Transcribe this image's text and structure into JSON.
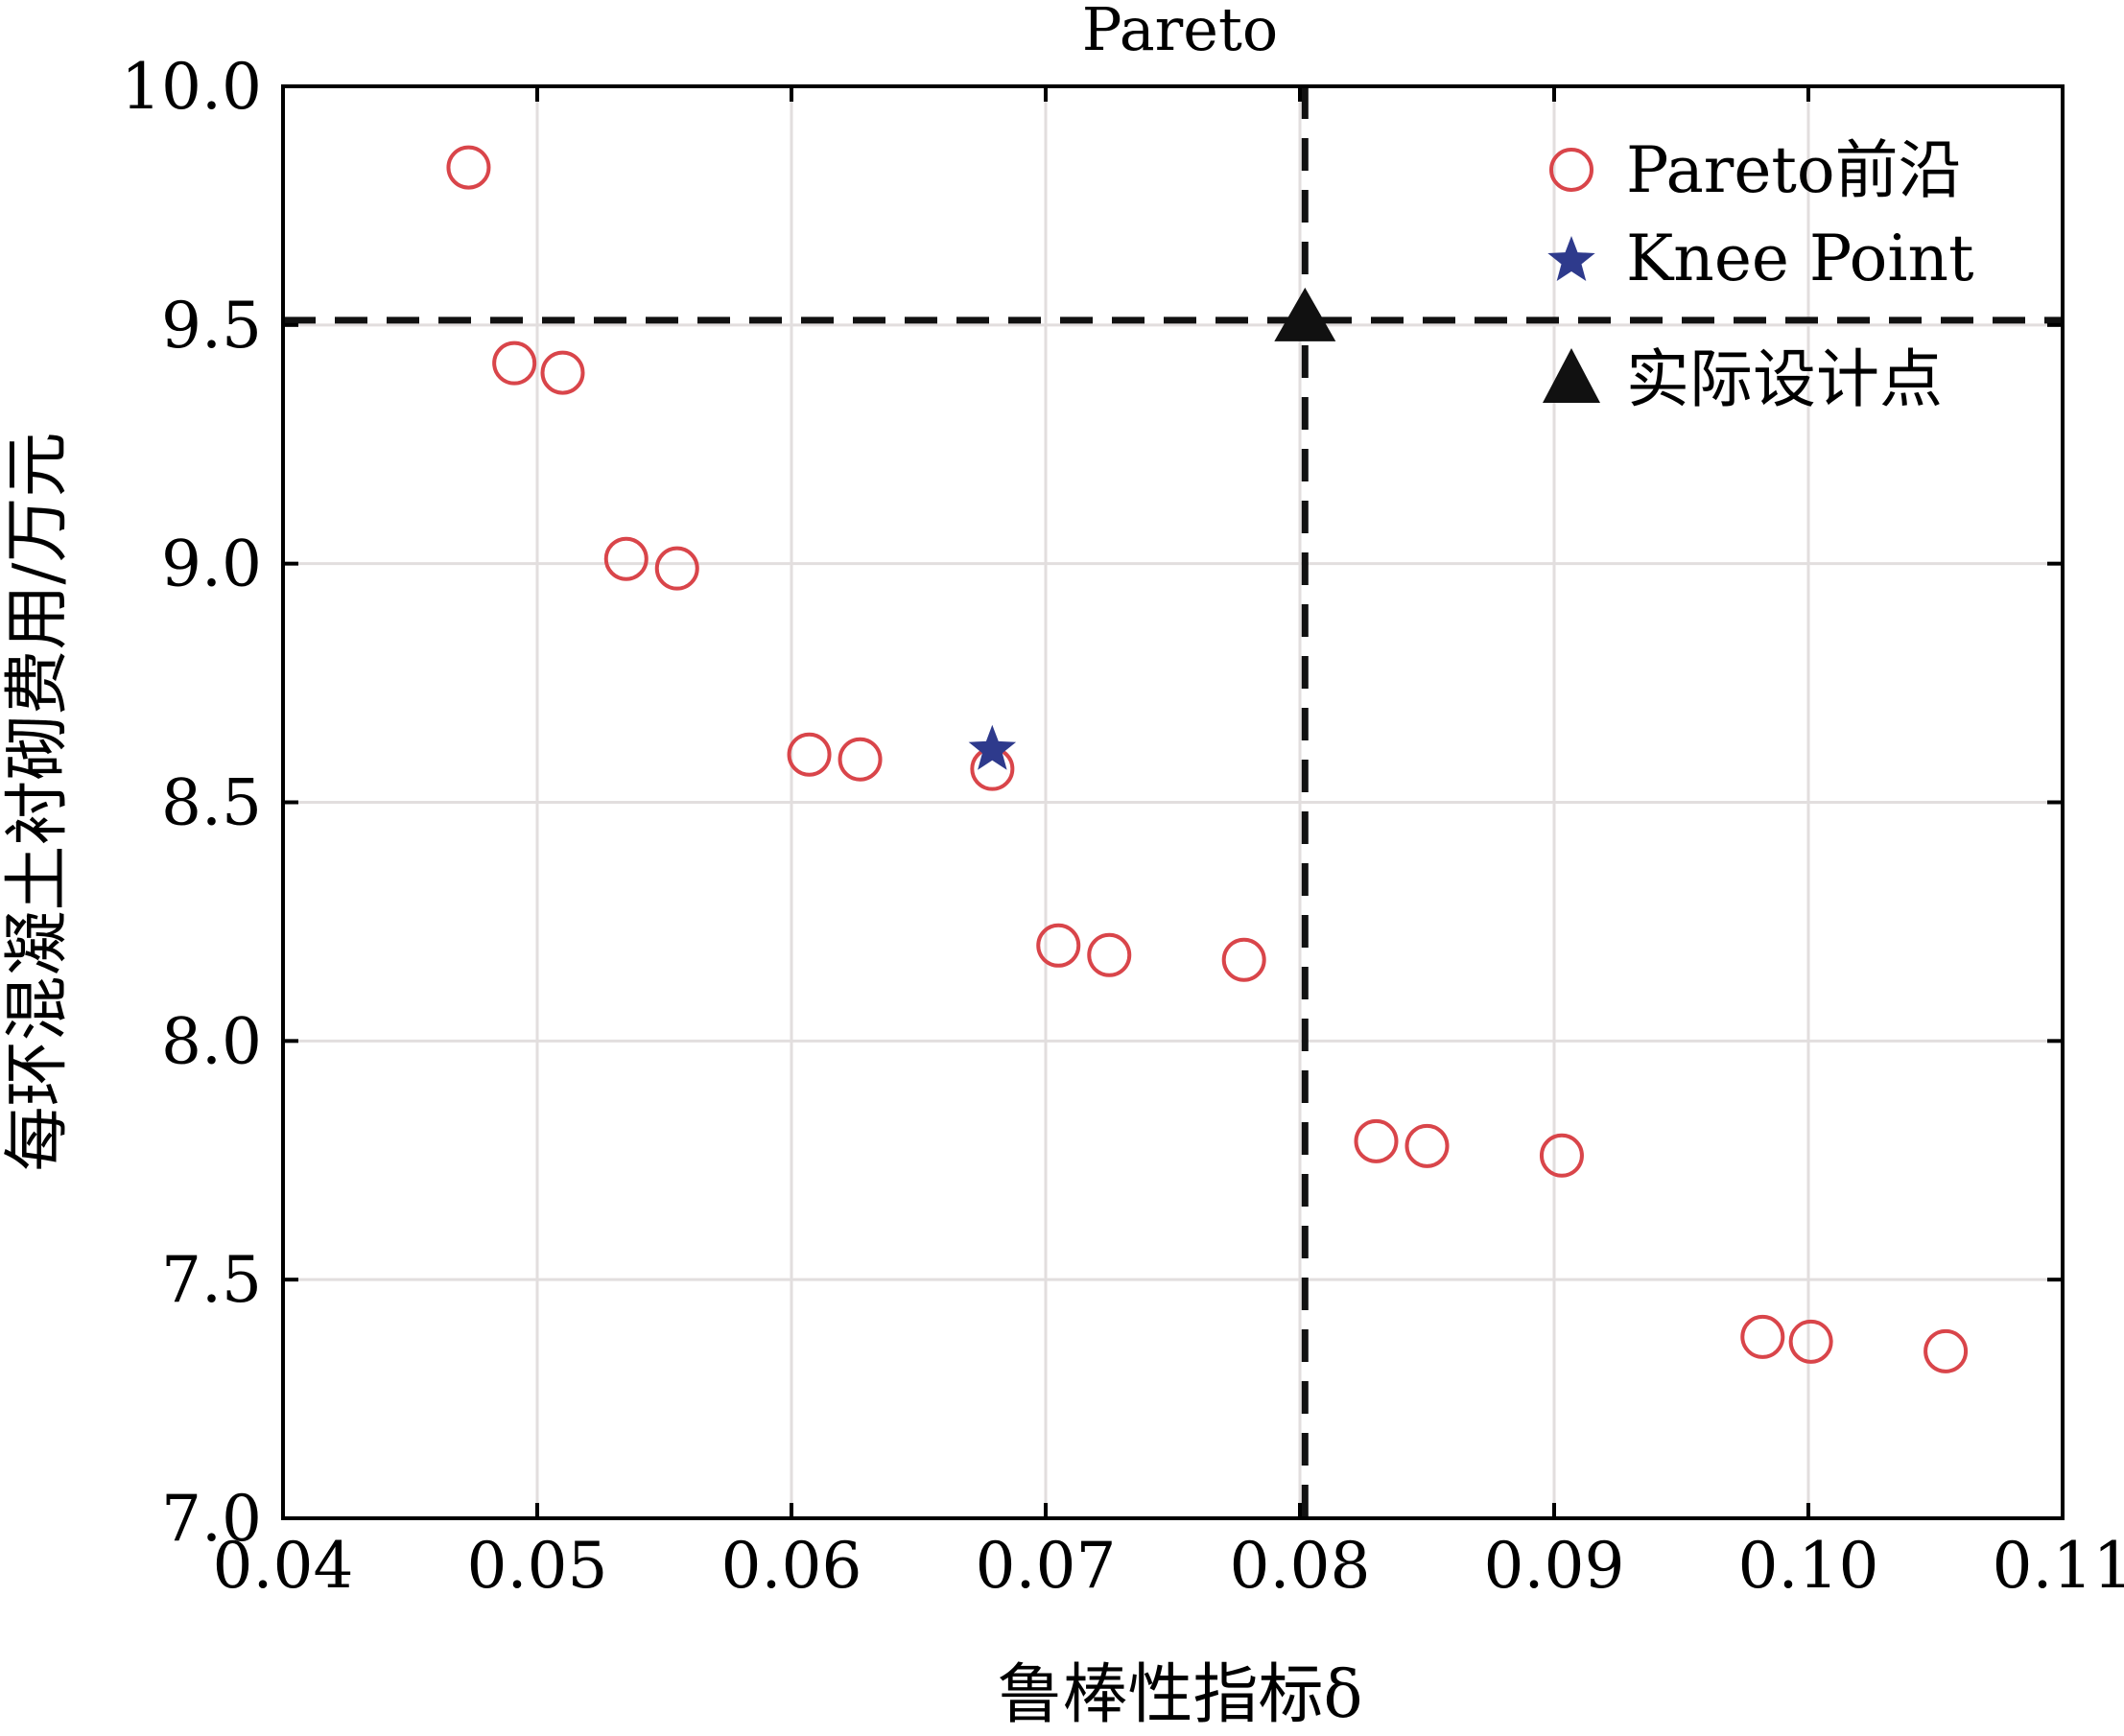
{
  "chart_data": {
    "type": "scatter",
    "title": "Pareto",
    "xlabel": "鲁棒性指标δ",
    "ylabel": "每环混凝土衬砌费用/万元",
    "xlim": [
      0.04,
      0.11
    ],
    "ylim": [
      7.0,
      10.0
    ],
    "x_ticks": [
      "0.04",
      "0.05",
      "0.06",
      "0.07",
      "0.08",
      "0.09",
      "0.10",
      "0.11"
    ],
    "x_tick_values": [
      0.04,
      0.05,
      0.06,
      0.07,
      0.08,
      0.09,
      0.1,
      0.11
    ],
    "y_ticks": [
      "7.0",
      "7.5",
      "8.0",
      "8.5",
      "9.0",
      "9.5",
      "10.0"
    ],
    "y_tick_values": [
      7.0,
      7.5,
      8.0,
      8.5,
      9.0,
      9.5,
      10.0
    ],
    "grid": true,
    "legend_position": "top-right",
    "series": [
      {
        "name": "Pareto前沿",
        "marker": "open-circle",
        "color": "#d9454a",
        "points": [
          {
            "x": 0.0473,
            "y": 9.83
          },
          {
            "x": 0.0491,
            "y": 9.42
          },
          {
            "x": 0.051,
            "y": 9.4
          },
          {
            "x": 0.0535,
            "y": 9.01
          },
          {
            "x": 0.0555,
            "y": 8.99
          },
          {
            "x": 0.0607,
            "y": 8.6
          },
          {
            "x": 0.0627,
            "y": 8.59
          },
          {
            "x": 0.0679,
            "y": 8.57
          },
          {
            "x": 0.0705,
            "y": 8.2
          },
          {
            "x": 0.0725,
            "y": 8.18
          },
          {
            "x": 0.0778,
            "y": 8.17
          },
          {
            "x": 0.083,
            "y": 7.79
          },
          {
            "x": 0.085,
            "y": 7.78
          },
          {
            "x": 0.0903,
            "y": 7.76
          },
          {
            "x": 0.0982,
            "y": 7.38
          },
          {
            "x": 0.1001,
            "y": 7.37
          },
          {
            "x": 0.1054,
            "y": 7.35
          }
        ]
      },
      {
        "name": "Knee Point",
        "marker": "star",
        "color": "#2e3a8c",
        "points": [
          {
            "x": 0.0679,
            "y": 8.61
          }
        ]
      },
      {
        "name": "实际设计点",
        "marker": "triangle",
        "color": "#111111",
        "points": [
          {
            "x": 0.0802,
            "y": 9.51
          }
        ]
      }
    ],
    "reference_lines": {
      "horizontal_y": 9.51,
      "vertical_x": 0.0802,
      "style": "dashed",
      "color": "#111111"
    }
  }
}
